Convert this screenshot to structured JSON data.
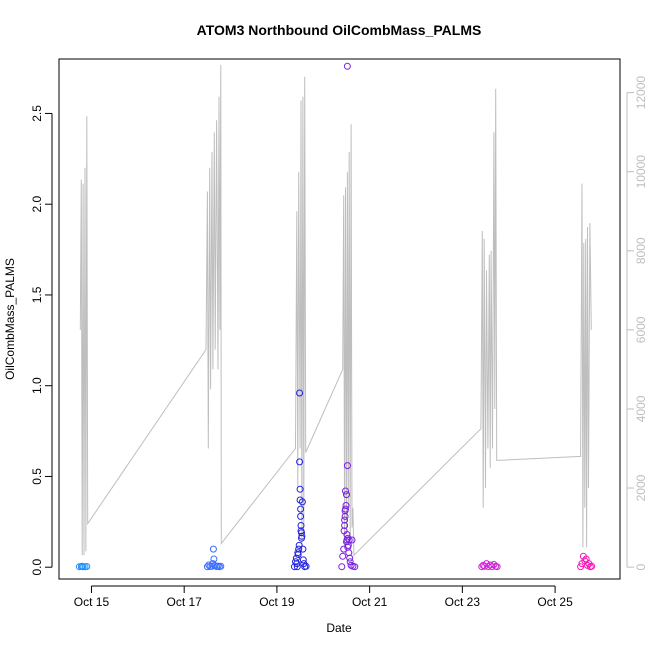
{
  "chart_data": {
    "type": "scatter",
    "title": "ATOM3 Northbound OilCombMass_PALMS",
    "xlabel": "Date",
    "ylabel": "OilCombMass_PALMS",
    "x_unit": "days (October)",
    "xlim": [
      14.3,
      26.4
    ],
    "ylim": [
      -0.065,
      2.8
    ],
    "x_ticks": [
      {
        "value": 15,
        "label": "Oct 15"
      },
      {
        "value": 17,
        "label": "Oct 17"
      },
      {
        "value": 19,
        "label": "Oct 19"
      },
      {
        "value": 21,
        "label": "Oct 21"
      },
      {
        "value": 23,
        "label": "Oct 23"
      },
      {
        "value": 25,
        "label": "Oct 25"
      }
    ],
    "y_ticks": [
      {
        "value": 0.0,
        "label": "0.0"
      },
      {
        "value": 0.5,
        "label": "0.5"
      },
      {
        "value": 1.0,
        "label": "1.0"
      },
      {
        "value": 1.5,
        "label": "1.5"
      },
      {
        "value": 2.0,
        "label": "2.0"
      },
      {
        "value": 2.5,
        "label": "2.5"
      }
    ],
    "secondary_axis": {
      "color": "#bebebe",
      "ylim": [
        -300,
        12850
      ],
      "ticks": [
        {
          "value": 0,
          "label": "0"
        },
        {
          "value": 2000,
          "label": "2000"
        },
        {
          "value": 4000,
          "label": "4000"
        },
        {
          "value": 6000,
          "label": "6000"
        },
        {
          "value": 8000,
          "label": "8000"
        },
        {
          "value": 10000,
          "label": "10000"
        },
        {
          "value": 12000,
          "label": "12000"
        }
      ]
    },
    "altitude_series": {
      "color": "#bebebe",
      "points": [
        [
          14.76,
          6000
        ],
        [
          14.78,
          9800
        ],
        [
          14.8,
          300
        ],
        [
          14.82,
          9700
        ],
        [
          14.84,
          300
        ],
        [
          14.86,
          10100
        ],
        [
          14.88,
          400
        ],
        [
          14.9,
          11400
        ],
        [
          14.92,
          1100
        ],
        [
          17.47,
          5500
        ],
        [
          17.5,
          9500
        ],
        [
          17.52,
          3000
        ],
        [
          17.55,
          10100
        ],
        [
          17.57,
          4500
        ],
        [
          17.6,
          10500
        ],
        [
          17.62,
          5000
        ],
        [
          17.65,
          11000
        ],
        [
          17.67,
          5500
        ],
        [
          17.7,
          11300
        ],
        [
          17.73,
          5000
        ],
        [
          17.75,
          11900
        ],
        [
          17.77,
          6000
        ],
        [
          17.79,
          12700
        ],
        [
          17.8,
          600
        ],
        [
          19.4,
          3000
        ],
        [
          19.43,
          9000
        ],
        [
          19.45,
          2000
        ],
        [
          19.47,
          10000
        ],
        [
          19.5,
          3000
        ],
        [
          19.52,
          11800
        ],
        [
          19.54,
          500
        ],
        [
          19.56,
          11900
        ],
        [
          19.58,
          1000
        ],
        [
          19.6,
          12400
        ],
        [
          19.62,
          2900
        ],
        [
          20.42,
          5000
        ],
        [
          20.44,
          9400
        ],
        [
          20.46,
          500
        ],
        [
          20.48,
          9600
        ],
        [
          20.5,
          1000
        ],
        [
          20.52,
          10000
        ],
        [
          20.54,
          1500
        ],
        [
          20.56,
          10500
        ],
        [
          20.58,
          600
        ],
        [
          20.6,
          11200
        ],
        [
          20.62,
          1000
        ],
        [
          20.64,
          1500
        ],
        [
          20.66,
          300
        ],
        [
          23.4,
          3500
        ],
        [
          23.43,
          8500
        ],
        [
          23.45,
          1500
        ],
        [
          23.47,
          8300
        ],
        [
          23.5,
          2000
        ],
        [
          23.52,
          7500
        ],
        [
          23.55,
          3000
        ],
        [
          23.58,
          7900
        ],
        [
          23.6,
          2500
        ],
        [
          23.62,
          8000
        ],
        [
          23.65,
          3000
        ],
        [
          23.68,
          11000
        ],
        [
          23.7,
          4000
        ],
        [
          23.72,
          12100
        ],
        [
          23.74,
          2700
        ],
        [
          25.55,
          2800
        ],
        [
          25.58,
          9700
        ],
        [
          25.6,
          500
        ],
        [
          25.62,
          8200
        ],
        [
          25.64,
          1500
        ],
        [
          25.66,
          8300
        ],
        [
          25.68,
          500
        ],
        [
          25.7,
          8600
        ],
        [
          25.72,
          2000
        ],
        [
          25.75,
          8700
        ],
        [
          25.78,
          6000
        ]
      ]
    },
    "series": [
      {
        "flight": 1,
        "color": "#1e90ff",
        "points": [
          [
            14.74,
            0.003
          ],
          [
            14.78,
            0.004
          ],
          [
            14.82,
            0.002
          ],
          [
            14.86,
            0.003
          ],
          [
            14.9,
            0.004
          ],
          [
            14.8,
            0.005
          ]
        ]
      },
      {
        "flight": 2,
        "color": "#3a6cff",
        "points": [
          [
            17.5,
            0.003
          ],
          [
            17.53,
            0.012
          ],
          [
            17.56,
            0.004
          ],
          [
            17.6,
            0.005
          ],
          [
            17.62,
            0.02
          ],
          [
            17.63,
            0.1
          ],
          [
            17.64,
            0.045
          ],
          [
            17.66,
            0.008
          ],
          [
            17.7,
            0.004
          ],
          [
            17.73,
            0.006
          ],
          [
            17.76,
            0.003
          ],
          [
            17.79,
            0.005
          ]
        ]
      },
      {
        "flight": 3,
        "color": "#2222dd",
        "points": [
          [
            19.38,
            0.003
          ],
          [
            19.4,
            0.03
          ],
          [
            19.42,
            0.05
          ],
          [
            19.43,
            0.02
          ],
          [
            19.44,
            0.003
          ],
          [
            19.45,
            0.08
          ],
          [
            19.46,
            0.07
          ],
          [
            19.47,
            0.1
          ],
          [
            19.48,
            0.12
          ],
          [
            19.49,
            0.96
          ],
          [
            19.49,
            0.58
          ],
          [
            19.5,
            0.43
          ],
          [
            19.5,
            0.37
          ],
          [
            19.51,
            0.32
          ],
          [
            19.51,
            0.28
          ],
          [
            19.52,
            0.23
          ],
          [
            19.52,
            0.2
          ],
          [
            19.53,
            0.19
          ],
          [
            19.53,
            0.16
          ],
          [
            19.54,
            0.17
          ],
          [
            19.55,
            0.36
          ],
          [
            19.56,
            0.1
          ],
          [
            19.57,
            0.04
          ],
          [
            19.58,
            0.02
          ],
          [
            19.6,
            0.003
          ],
          [
            19.63,
            0.005
          ]
        ]
      },
      {
        "flight": 4,
        "color": "#7a1fe0",
        "points": [
          [
            20.4,
            0.003
          ],
          [
            20.42,
            0.06
          ],
          [
            20.44,
            0.1
          ],
          [
            20.45,
            0.2
          ],
          [
            20.46,
            0.23
          ],
          [
            20.46,
            0.26
          ],
          [
            20.47,
            0.28
          ],
          [
            20.47,
            0.31
          ],
          [
            20.48,
            0.32
          ],
          [
            20.48,
            0.42
          ],
          [
            20.49,
            0.34
          ],
          [
            20.5,
            0.4
          ],
          [
            20.5,
            0.14
          ],
          [
            20.51,
            0.15
          ],
          [
            20.51,
            0.18
          ],
          [
            20.52,
            0.56
          ],
          [
            20.52,
            2.76
          ],
          [
            20.53,
            0.16
          ],
          [
            20.53,
            0.11
          ],
          [
            20.54,
            0.12
          ],
          [
            20.55,
            0.08
          ],
          [
            20.56,
            0.15
          ],
          [
            20.57,
            0.05
          ],
          [
            20.58,
            0.03
          ],
          [
            20.6,
            0.01
          ],
          [
            20.62,
            0.15
          ],
          [
            20.64,
            0.005
          ],
          [
            20.68,
            0.003
          ]
        ]
      },
      {
        "flight": 5,
        "color": "#d020d8",
        "points": [
          [
            23.42,
            0.003
          ],
          [
            23.45,
            0.01
          ],
          [
            23.48,
            0.005
          ],
          [
            23.52,
            0.02
          ],
          [
            23.56,
            0.004
          ],
          [
            23.6,
            0.012
          ],
          [
            23.64,
            0.003
          ],
          [
            23.68,
            0.015
          ],
          [
            23.72,
            0.005
          ],
          [
            23.75,
            0.003
          ]
        ]
      },
      {
        "flight": 6,
        "color": "#ff10b8",
        "points": [
          [
            25.55,
            0.003
          ],
          [
            25.58,
            0.02
          ],
          [
            25.61,
            0.06
          ],
          [
            25.64,
            0.035
          ],
          [
            25.67,
            0.045
          ],
          [
            25.7,
            0.01
          ],
          [
            25.73,
            0.02
          ],
          [
            25.76,
            0.003
          ],
          [
            25.79,
            0.005
          ]
        ]
      }
    ]
  }
}
